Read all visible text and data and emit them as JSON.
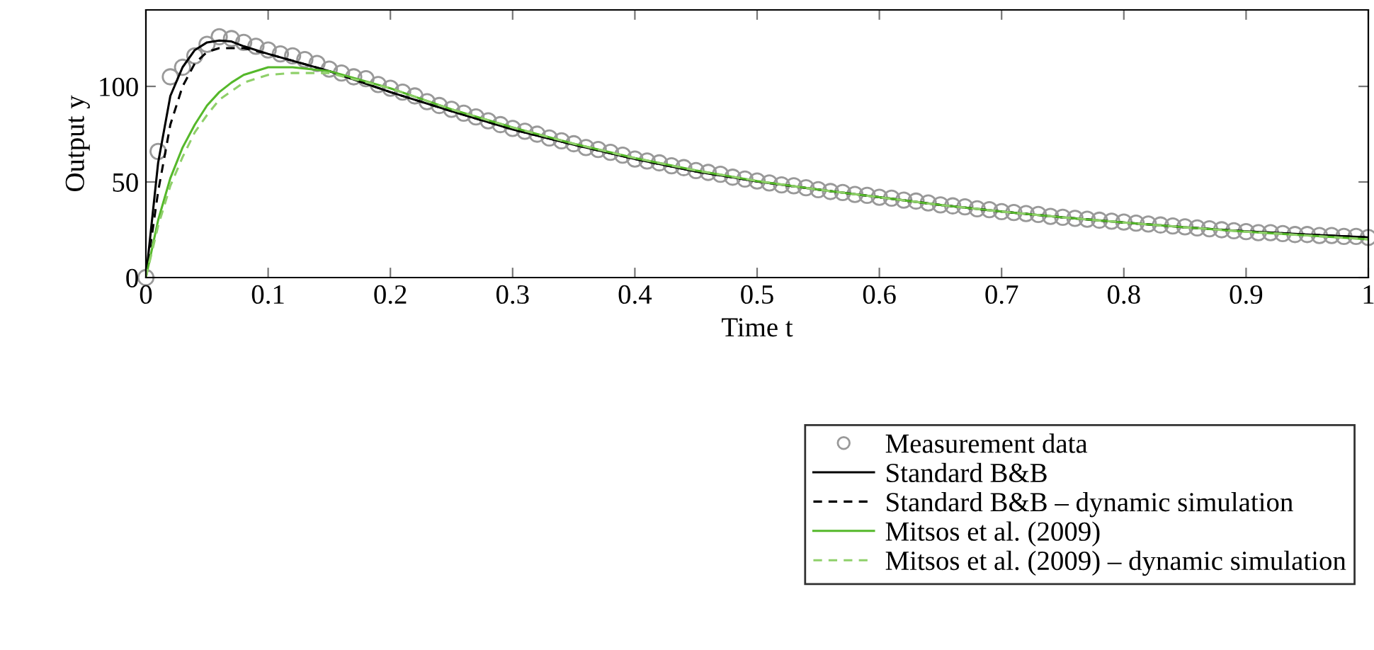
{
  "chart_data": {
    "type": "line",
    "xlabel": "Time t",
    "ylabel": "Output y",
    "xlim": [
      0,
      1
    ],
    "ylim": [
      0,
      140
    ],
    "xticks": [
      0,
      0.1,
      0.2,
      0.3,
      0.4,
      0.5,
      0.6,
      0.7,
      0.8,
      0.9,
      1
    ],
    "yticks": [
      0,
      50,
      100
    ],
    "grid": false,
    "legend": "bottom right",
    "series": [
      {
        "name": "Measurement data",
        "type": "scatter",
        "marker": "circle",
        "color": "#999999",
        "x": [
          0,
          0.01,
          0.02,
          0.03,
          0.04,
          0.05,
          0.06,
          0.07,
          0.08,
          0.09,
          0.1,
          0.11,
          0.12,
          0.13,
          0.14,
          0.15,
          0.16,
          0.17,
          0.18,
          0.19,
          0.2,
          0.21,
          0.22,
          0.23,
          0.24,
          0.25,
          0.26,
          0.27,
          0.28,
          0.29,
          0.3,
          0.31,
          0.32,
          0.33,
          0.34,
          0.35,
          0.36,
          0.37,
          0.38,
          0.39,
          0.4,
          0.41,
          0.42,
          0.43,
          0.44,
          0.45,
          0.46,
          0.47,
          0.48,
          0.49,
          0.5,
          0.51,
          0.52,
          0.53,
          0.54,
          0.55,
          0.56,
          0.57,
          0.58,
          0.59,
          0.6,
          0.61,
          0.62,
          0.63,
          0.64,
          0.65,
          0.66,
          0.67,
          0.68,
          0.69,
          0.7,
          0.71,
          0.72,
          0.73,
          0.74,
          0.75,
          0.76,
          0.77,
          0.78,
          0.79,
          0.8,
          0.81,
          0.82,
          0.83,
          0.84,
          0.85,
          0.86,
          0.87,
          0.88,
          0.89,
          0.9,
          0.91,
          0.92,
          0.93,
          0.94,
          0.95,
          0.96,
          0.97,
          0.98,
          0.99,
          1
        ],
        "values": [
          0,
          66,
          105,
          110,
          116,
          122,
          126,
          125,
          123,
          121,
          119,
          117,
          116,
          114,
          112,
          109,
          107,
          105,
          104,
          101,
          99,
          97,
          95,
          92,
          90,
          88,
          86,
          84,
          82,
          80,
          78,
          76.5,
          75,
          73,
          71.5,
          70,
          68,
          67,
          65.5,
          64,
          62,
          61,
          60,
          58.5,
          57.5,
          56,
          55,
          54,
          52.5,
          51.5,
          50.5,
          49.5,
          48.5,
          48,
          47,
          46,
          45,
          44.5,
          43.5,
          43,
          42,
          41.5,
          40.5,
          40,
          39,
          38,
          37.5,
          37,
          36,
          35.5,
          34.5,
          34,
          33.5,
          33,
          32,
          31.5,
          31,
          30.5,
          30,
          29.5,
          29,
          28.5,
          28,
          27.5,
          27,
          26.5,
          26,
          25.5,
          25,
          24.5,
          24,
          23.5,
          23.5,
          23,
          22.5,
          22.5,
          22,
          22,
          21.5,
          21.5,
          21
        ]
      },
      {
        "name": "Standard B&B",
        "line_style": "solid",
        "color": "#000000",
        "x": [
          0,
          0.01,
          0.02,
          0.03,
          0.04,
          0.05,
          0.06,
          0.07,
          0.08,
          0.1,
          0.15,
          0.2,
          0.25,
          0.3,
          0.35,
          0.4,
          0.45,
          0.5,
          0.55,
          0.6,
          0.65,
          0.7,
          0.75,
          0.8,
          0.85,
          0.9,
          0.95,
          1
        ],
        "values": [
          0,
          60,
          95,
          110,
          119,
          123,
          124,
          123.5,
          121,
          117,
          108,
          97,
          87,
          77.5,
          69.5,
          62,
          55.5,
          50.3,
          46,
          42,
          38,
          34.5,
          31.5,
          28.8,
          26.3,
          24.2,
          22.5,
          21
        ]
      },
      {
        "name": "Standard B&B – dynamic simulation",
        "line_style": "dashed",
        "color": "#000000",
        "x": [
          0,
          0.01,
          0.02,
          0.03,
          0.04,
          0.05,
          0.06,
          0.08,
          0.1,
          0.15,
          0.2,
          0.25,
          0.3,
          0.35,
          0.4,
          0.45,
          0.5,
          0.55,
          0.6,
          0.65,
          0.7,
          0.75,
          0.8,
          0.85,
          0.9,
          0.95,
          1
        ],
        "values": [
          0,
          45,
          80,
          100,
          112,
          118,
          120,
          120,
          117,
          108,
          97,
          87,
          77.5,
          69.5,
          62,
          55.5,
          50.3,
          46,
          42,
          38,
          34.5,
          31.5,
          28.8,
          26.3,
          24.2,
          22.5,
          21
        ]
      },
      {
        "name": "Mitsos et al. (2009)",
        "line_style": "solid",
        "color": "#55b82a",
        "x": [
          0,
          0.01,
          0.02,
          0.03,
          0.04,
          0.05,
          0.06,
          0.07,
          0.08,
          0.1,
          0.12,
          0.15,
          0.2,
          0.25,
          0.3,
          0.35,
          0.4,
          0.45,
          0.5,
          0.55,
          0.6,
          0.65,
          0.7,
          0.75,
          0.8,
          0.85,
          0.9,
          0.95,
          1
        ],
        "values": [
          0,
          30,
          52,
          68,
          80,
          90,
          97,
          102,
          106,
          110,
          110,
          108,
          99,
          88,
          78.5,
          70,
          62.5,
          56,
          50.5,
          46,
          42,
          38,
          34.5,
          31.5,
          28.8,
          26.3,
          24,
          22,
          20
        ]
      },
      {
        "name": "Mitsos et al. (2009) – dynamic simulation",
        "line_style": "dashed",
        "color": "#8fd06a",
        "x": [
          0,
          0.01,
          0.02,
          0.03,
          0.04,
          0.05,
          0.06,
          0.08,
          0.1,
          0.12,
          0.15,
          0.2,
          0.25,
          0.3,
          0.35,
          0.4,
          0.45,
          0.5,
          0.55,
          0.6,
          0.65,
          0.7,
          0.75,
          0.8,
          0.85,
          0.9,
          0.95,
          1
        ],
        "values": [
          0,
          27,
          48,
          63,
          76,
          85,
          93,
          102,
          106,
          107,
          107,
          99,
          88,
          78.5,
          70,
          62.5,
          56,
          50.5,
          46,
          42,
          38,
          34.5,
          31.5,
          28.8,
          26.3,
          24,
          22,
          20
        ]
      }
    ]
  }
}
